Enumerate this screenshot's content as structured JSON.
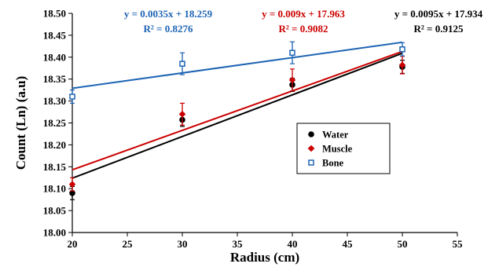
{
  "chart_data": {
    "type": "scatter",
    "xlabel": "Radius (cm)",
    "ylabel": "Count (Ln) (a.u)",
    "xlim": [
      20,
      55
    ],
    "ylim": [
      18.0,
      18.5
    ],
    "x_ticks": [
      "20",
      "25",
      "30",
      "35",
      "40",
      "45",
      "50",
      "55"
    ],
    "y_ticks": [
      "18.00",
      "18.05",
      "18.10",
      "18.15",
      "18.20",
      "18.25",
      "18.30",
      "18.35",
      "18.40",
      "18.45",
      "18.50"
    ],
    "grid": false,
    "legend_position": "right",
    "series": [
      {
        "name": "Water",
        "color": "#000000",
        "marker": "circle",
        "x": [
          20,
          30,
          40,
          50
        ],
        "y": [
          18.09,
          18.257,
          18.337,
          18.378
        ],
        "error": [
          0.015,
          0.015,
          0.015,
          0.015
        ],
        "fit": {
          "slope": 0.0095,
          "intercept": 17.934,
          "equation": "y = 0.0095x + 17.934",
          "r2": "R² = 0.9125"
        }
      },
      {
        "name": "Muscle",
        "color": "#cc0000",
        "marker": "diamond",
        "x": [
          20,
          30,
          40,
          50
        ],
        "y": [
          18.11,
          18.27,
          18.348,
          18.382
        ],
        "error": [
          0.015,
          0.025,
          0.025,
          0.02
        ],
        "fit": {
          "slope": 0.009,
          "intercept": 17.963,
          "equation": "y = 0.009x + 17.963",
          "r2": "R² = 0.9082"
        }
      },
      {
        "name": "Bone",
        "color": "#1e64b4",
        "marker": "square",
        "x": [
          20,
          30,
          40,
          50
        ],
        "y": [
          18.31,
          18.385,
          18.41,
          18.418
        ],
        "error": [
          0.015,
          0.025,
          0.025,
          0.015
        ],
        "fit": {
          "slope": 0.0035,
          "intercept": 18.259,
          "equation": "y = 0.0035x + 18.259",
          "r2": "R² = 0.8276"
        }
      }
    ]
  }
}
